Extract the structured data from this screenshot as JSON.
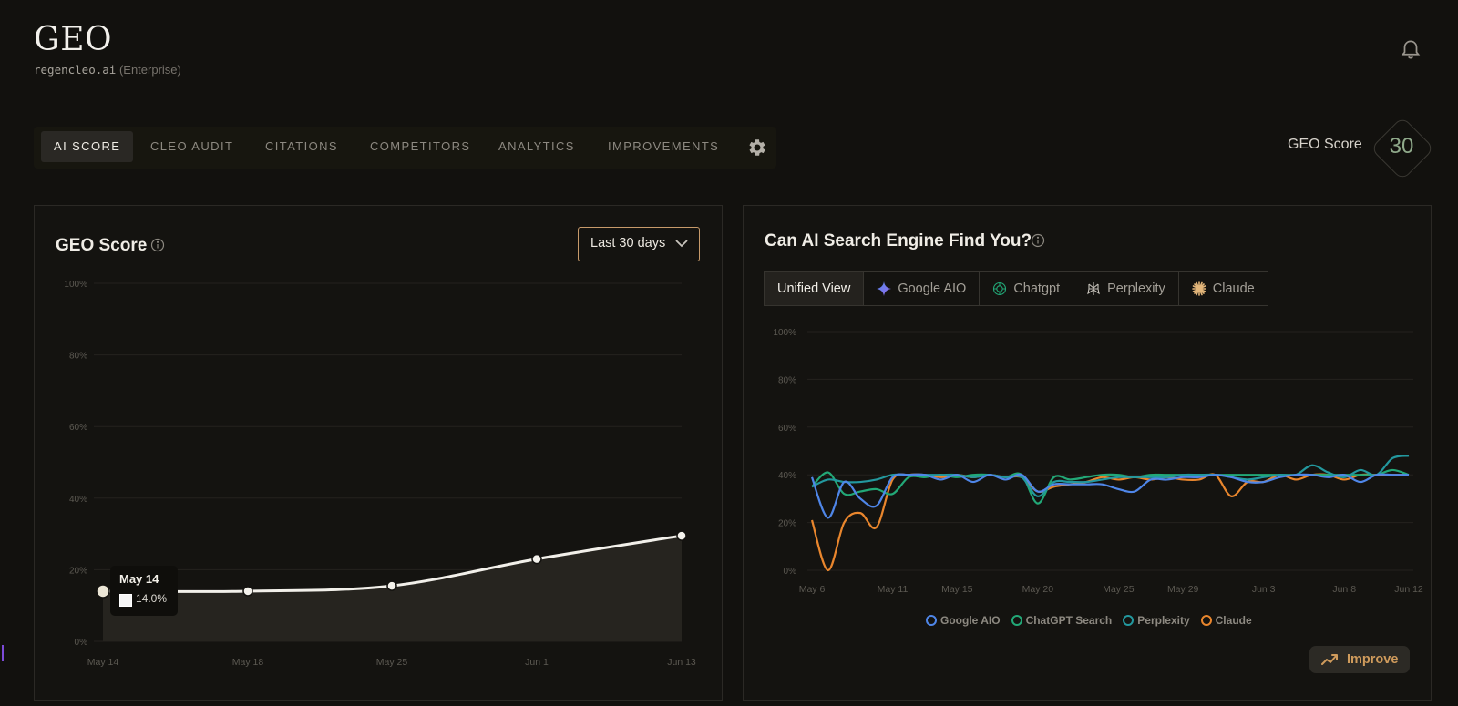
{
  "brand": {
    "title": "GEO",
    "domain": "regencleo.ai",
    "plan": "(Enterprise)"
  },
  "header": {
    "notification_icon": "bell-icon"
  },
  "nav": {
    "tabs": [
      {
        "label": "AI SCORE",
        "active": true
      },
      {
        "label": "CLEO AUDIT"
      },
      {
        "label": "CITATIONS"
      },
      {
        "label": "COMPETITORS"
      },
      {
        "label": "ANALYTICS"
      },
      {
        "label": "IMPROVEMENTS"
      }
    ],
    "settings_icon": "gear-icon"
  },
  "score": {
    "label": "GEO Score",
    "value": "30"
  },
  "geo_panel": {
    "title": "GEO Score",
    "range_label": "Last 30 days",
    "tooltip": {
      "date": "May 14",
      "value": "14.0%"
    }
  },
  "engine_panel": {
    "title": "Can AI Search Engine Find You?",
    "tabs": [
      {
        "label": "Unified View",
        "active": true
      },
      {
        "label": "Google AIO",
        "icon": "gemini-sparkle-icon"
      },
      {
        "label": "Chatgpt",
        "icon": "openai-icon"
      },
      {
        "label": "Perplexity",
        "icon": "perplexity-icon"
      },
      {
        "label": "Claude",
        "icon": "claude-burst-icon"
      }
    ],
    "legend": [
      {
        "label": "Google AIO",
        "color": "#4f86e8"
      },
      {
        "label": "ChatGPT Search",
        "color": "#22a877"
      },
      {
        "label": "Perplexity",
        "color": "#23989e"
      },
      {
        "label": "Claude",
        "color": "#e9862d"
      }
    ],
    "improve_label": "Improve"
  },
  "chart_data": [
    {
      "type": "area",
      "title": "GEO Score",
      "y_ticks": [
        "0%",
        "20%",
        "40%",
        "60%",
        "80%",
        "100%"
      ],
      "ylim": [
        0,
        100
      ],
      "x_ticks": [
        "May 14",
        "May 18",
        "May 25",
        "Jun 1",
        "Jun 13"
      ],
      "x": [
        "May 14",
        "May 18",
        "May 25",
        "Jun 1",
        "Jun 13"
      ],
      "series": [
        {
          "values": [
            14,
            14,
            15.5,
            23,
            29.5
          ]
        }
      ],
      "grid": true
    },
    {
      "type": "line",
      "title": "Can AI Search Engine Find You?",
      "y_ticks": [
        "0%",
        "20%",
        "40%",
        "60%",
        "80%",
        "100%"
      ],
      "ylim": [
        0,
        100
      ],
      "x_ticks": [
        "May 6",
        "May 11",
        "May 15",
        "May 20",
        "May 25",
        "May 29",
        "Jun 3",
        "Jun 8",
        "Jun 12"
      ],
      "x": [
        "May 6",
        "May 7",
        "May 8",
        "May 9",
        "May 10",
        "May 11",
        "May 12",
        "May 13",
        "May 14",
        "May 15",
        "May 16",
        "May 17",
        "May 18",
        "May 19",
        "May 20",
        "May 21",
        "May 22",
        "May 23",
        "May 24",
        "May 25",
        "May 26",
        "May 27",
        "May 28",
        "May 29",
        "May 30",
        "May 31",
        "Jun 1",
        "Jun 2",
        "Jun 3",
        "Jun 4",
        "Jun 5",
        "Jun 6",
        "Jun 7",
        "Jun 8",
        "Jun 9",
        "Jun 10",
        "Jun 11",
        "Jun 12"
      ],
      "series": [
        {
          "name": "Google AIO",
          "values": [
            39,
            22,
            37,
            30,
            27,
            39,
            40,
            40,
            38,
            40,
            37,
            40,
            38,
            40,
            33,
            36,
            36,
            36,
            36,
            34,
            33,
            38,
            38,
            39,
            39,
            40,
            39,
            37,
            37,
            39,
            40,
            40,
            39,
            40,
            37,
            40,
            40,
            40
          ]
        },
        {
          "name": "ChatGPT Search",
          "values": [
            35,
            41,
            32,
            33,
            34,
            32,
            39,
            39,
            40,
            39,
            40,
            40,
            39,
            40,
            28,
            39,
            38,
            39,
            40,
            40,
            39,
            40,
            40,
            40,
            40,
            40,
            40,
            40,
            40,
            40,
            40,
            40,
            40,
            40,
            40,
            40,
            42,
            40
          ]
        },
        {
          "name": "Perplexity",
          "values": [
            35,
            38,
            37,
            37,
            38,
            40,
            40,
            40,
            40,
            40,
            39,
            40,
            39,
            39,
            31,
            37,
            37,
            37,
            38,
            39,
            39,
            39,
            39,
            40,
            40,
            40,
            39,
            38,
            39,
            40,
            40,
            44,
            41,
            39,
            42,
            40,
            47,
            48
          ]
        },
        {
          "name": "Claude",
          "values": [
            21,
            0,
            20,
            24,
            18,
            38,
            40,
            40,
            39,
            40,
            39,
            40,
            39,
            39,
            33,
            35,
            36,
            37,
            39,
            38,
            39,
            38,
            39,
            38,
            38,
            40,
            31,
            37,
            37,
            40,
            38,
            40,
            40,
            38,
            40,
            40,
            40,
            40
          ]
        }
      ],
      "legend": "bottom",
      "grid": true
    }
  ]
}
